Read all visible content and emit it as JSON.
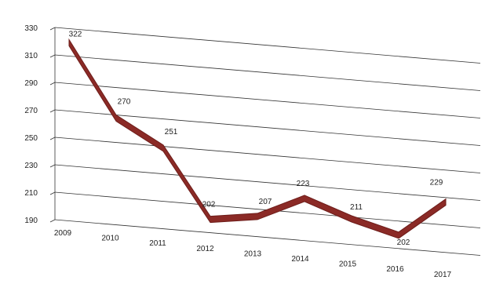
{
  "chart_data": {
    "type": "line",
    "title": "",
    "xlabel": "",
    "ylabel": "",
    "categories": [
      "2009",
      "2010",
      "2011",
      "2012",
      "2013",
      "2014",
      "2015",
      "2016",
      "2017"
    ],
    "values": [
      322,
      270,
      251,
      202,
      207,
      223,
      211,
      202,
      229
    ],
    "data_labels": [
      "322",
      "270",
      "251",
      "202",
      "207",
      "223",
      "211",
      "202",
      "229"
    ],
    "yticks": [
      "190",
      "210",
      "230",
      "250",
      "270",
      "290",
      "310",
      "330"
    ],
    "ylim": [
      190,
      330
    ],
    "grid": true,
    "legend": "none",
    "style": "3d-ribbon",
    "colors": {
      "series": "#8b2a26",
      "series_edge": "#6e1d1a",
      "grid": "#333333",
      "text": "#222222"
    }
  }
}
